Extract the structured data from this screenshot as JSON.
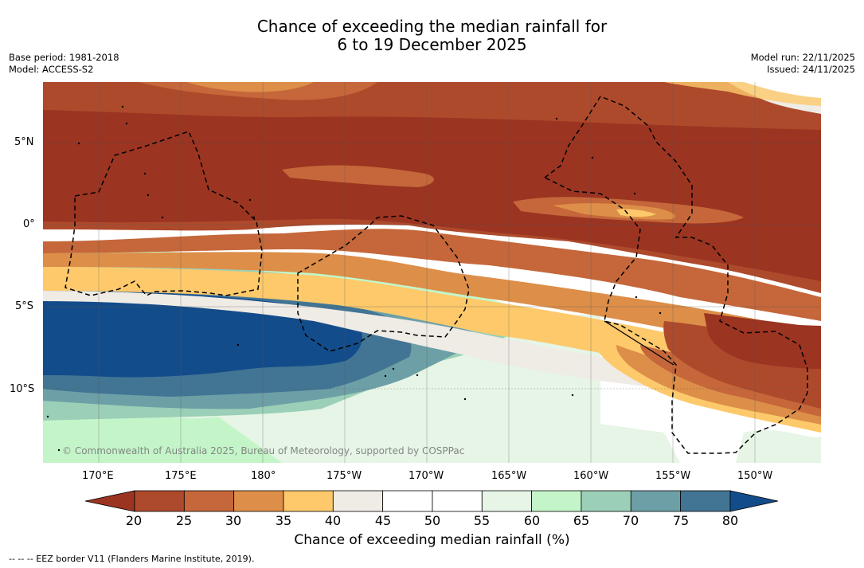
{
  "title": {
    "line1": "Chance of exceeding the median rainfall for",
    "line2": "6 to 19 December 2025"
  },
  "meta_left": {
    "base_period": "Base period: 1981-2018",
    "model": "Model: ACCESS-S2"
  },
  "meta_right": {
    "model_run": "Model run: 22/11/2025",
    "issued": "Issued: 24/11/2025"
  },
  "lat_labels": [
    "5°N",
    "0°",
    "5°S",
    "10°S"
  ],
  "lon_labels": [
    "170°E",
    "175°E",
    "180°",
    "175°W",
    "170°W",
    "165°W",
    "160°W",
    "155°W",
    "150°W"
  ],
  "credit": "© Commonwealth of Australia 2025, Bureau of Meteorology, supported by COSPPac",
  "colorbar": {
    "ticks": [
      "20",
      "25",
      "30",
      "35",
      "40",
      "45",
      "50",
      "55",
      "60",
      "65",
      "70",
      "75",
      "80"
    ],
    "title": "Chance of exceeding median rainfall (%)",
    "colors": {
      "under": "#9b3421",
      "c20_25": "#ae4a2c",
      "c25_30": "#c5673a",
      "c30_35": "#dd8e48",
      "c35_40": "#fdc96b",
      "c40_45": "#efebe5",
      "c45_50": "#ffffff",
      "c50_55": "#ffffff",
      "c55_60": "#e6f5e6",
      "c60_65": "#c4f5c9",
      "c65_70": "#9bcfb7",
      "c70_75": "#6da0a6",
      "c75_80": "#427594",
      "over": "#134c8a"
    }
  },
  "footer": "--  --  -- EEZ border V11 (Flanders Marine Institute, 2019)."
}
